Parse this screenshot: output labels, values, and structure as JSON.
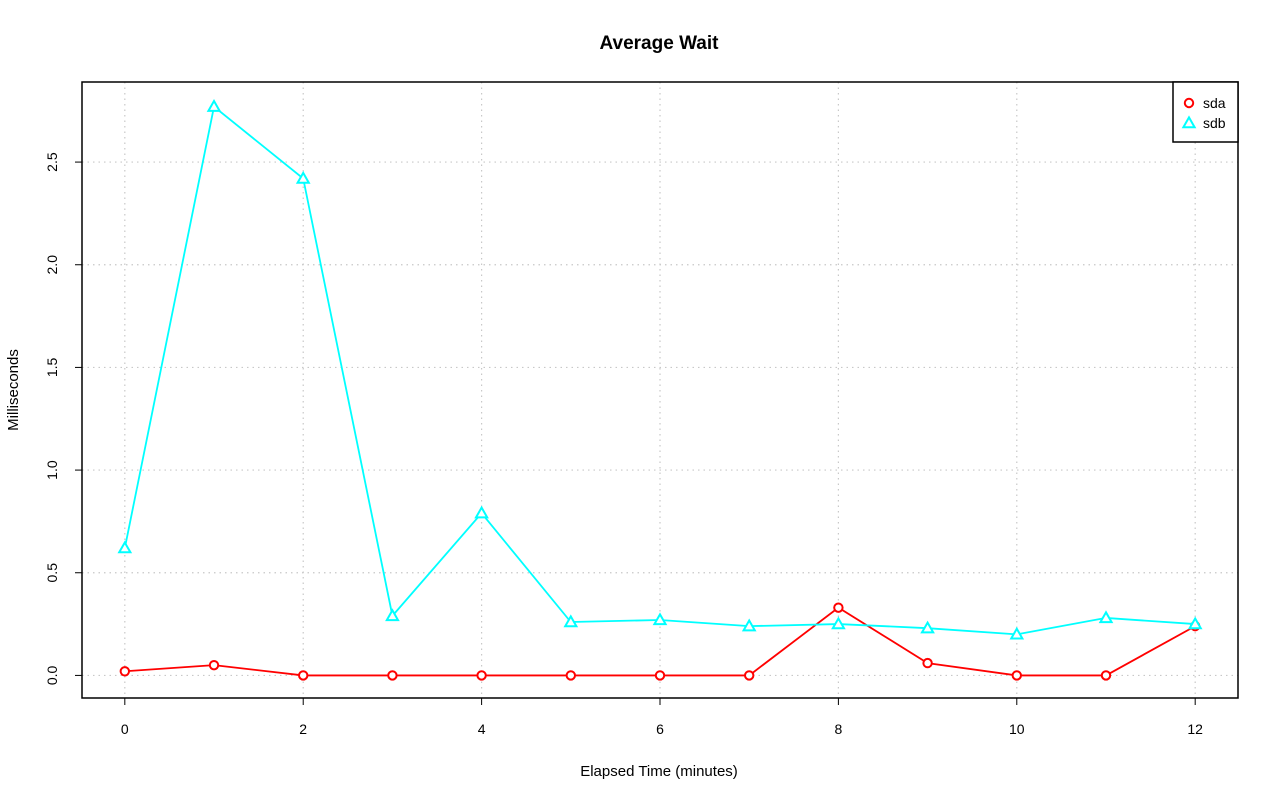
{
  "chart_data": {
    "type": "line",
    "title": "Average Wait",
    "xlabel": "Elapsed Time (minutes)",
    "ylabel": "Milliseconds",
    "x": [
      0,
      1,
      2,
      3,
      4,
      5,
      6,
      7,
      8,
      9,
      10,
      11,
      12
    ],
    "xlim": [
      -0.48,
      12.48
    ],
    "ylim": [
      -0.11,
      2.89
    ],
    "xticks": [
      0,
      2,
      4,
      6,
      8,
      10,
      12
    ],
    "xtick_labels": [
      "0",
      "2",
      "4",
      "6",
      "8",
      "10",
      "12"
    ],
    "yticks": [
      0,
      0.5,
      1,
      1.5,
      2,
      2.5
    ],
    "ytick_labels": [
      "0.0",
      "0.5",
      "1.0",
      "1.5",
      "2.0",
      "2.5"
    ],
    "grid": true,
    "legend_position": "top-right",
    "series": [
      {
        "name": "sda",
        "color": "#ff0000",
        "marker": "circle",
        "values": [
          0.02,
          0.05,
          0.0,
          0.0,
          0.0,
          0.0,
          0.0,
          0.0,
          0.33,
          0.06,
          0.0,
          0.0,
          0.24
        ]
      },
      {
        "name": "sdb",
        "color": "#00ffff",
        "marker": "triangle",
        "values": [
          0.62,
          2.77,
          2.42,
          0.29,
          0.79,
          0.26,
          0.27,
          0.24,
          0.25,
          0.23,
          0.2,
          0.28,
          0.25
        ]
      }
    ]
  }
}
